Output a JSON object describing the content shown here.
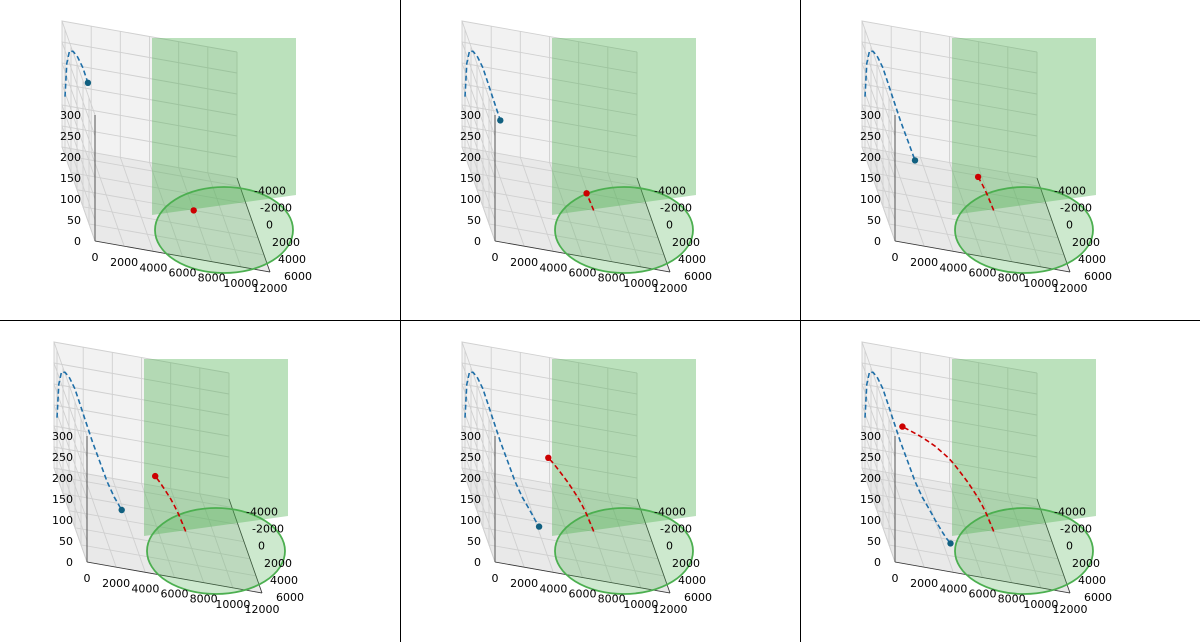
{
  "colors": {
    "launch_track": "#1f6fa8",
    "launch_marker": "#116080",
    "intercept_track": "#cc0000",
    "intercept_marker": "#cc0000",
    "zone_fill": "#4caf50",
    "zone_edge": "#4caf50",
    "pane": "#f2f2f2",
    "grid": "#d0d0d0"
  },
  "chart_data": [
    {
      "type": "line",
      "x_ticks": [
        "0",
        "2000",
        "4000",
        "6000",
        "8000",
        "10000",
        "12000"
      ],
      "y_ticks": [
        "-4000",
        "-2000",
        "0",
        "2000",
        "4000",
        "6000"
      ],
      "z_ticks": [
        "0",
        "50",
        "100",
        "150",
        "200",
        "250",
        "300"
      ],
      "xlim": [
        0,
        12000
      ],
      "ylim": [
        -5000,
        6000
      ],
      "zlim": [
        0,
        300
      ],
      "zone": {
        "center_x": 8000,
        "center_y": 0,
        "radius": 4000
      },
      "series": [
        {
          "x": [
            0,
            20,
            100,
            250,
            450,
            700,
            950
          ],
          "y": [
            -4000,
            -3500,
            -3000,
            -2500,
            -2000,
            -1500,
            -1000
          ],
          "z": [
            140,
            230,
            270,
            280,
            278,
            265,
            240
          ]
        },
        {
          "x": [
            8000
          ],
          "y": [
            0
          ],
          "z": [
            0
          ]
        }
      ],
      "grid": true,
      "legend": "none"
    },
    {
      "type": "line",
      "x_ticks": [
        "0",
        "2000",
        "4000",
        "6000",
        "8000",
        "10000",
        "12000"
      ],
      "y_ticks": [
        "-4000",
        "-2000",
        "0",
        "2000",
        "4000",
        "6000"
      ],
      "z_ticks": [
        "0",
        "50",
        "100",
        "150",
        "200",
        "250",
        "300"
      ],
      "xlim": [
        0,
        12000
      ],
      "ylim": [
        -5000,
        6000
      ],
      "zlim": [
        0,
        300
      ],
      "zone": {
        "center_x": 8000,
        "center_y": 0,
        "radius": 4000
      },
      "series": [
        {
          "x": [
            0,
            20,
            100,
            250,
            450,
            700,
            950,
            1250,
            1600
          ],
          "y": [
            -4000,
            -3500,
            -3000,
            -2500,
            -2000,
            -1500,
            -1000,
            -500,
            0
          ],
          "z": [
            140,
            230,
            270,
            280,
            278,
            265,
            240,
            210,
            175
          ]
        },
        {
          "x": [
            8000,
            7800,
            7600
          ],
          "y": [
            0,
            -200,
            -400
          ],
          "z": [
            0,
            15,
            30
          ]
        }
      ],
      "grid": true,
      "legend": "none"
    },
    {
      "type": "line",
      "x_ticks": [
        "0",
        "2000",
        "4000",
        "6000",
        "8000",
        "10000",
        "12000"
      ],
      "y_ticks": [
        "-4000",
        "-2000",
        "0",
        "2000",
        "4000",
        "6000"
      ],
      "z_ticks": [
        "0",
        "50",
        "100",
        "150",
        "200",
        "250",
        "300"
      ],
      "xlim": [
        0,
        12000
      ],
      "ylim": [
        -5000,
        6000
      ],
      "zlim": [
        0,
        300
      ],
      "zone": {
        "center_x": 8000,
        "center_y": 0,
        "radius": 4000
      },
      "series": [
        {
          "x": [
            0,
            20,
            100,
            250,
            450,
            700,
            950,
            1250,
            1600,
            2000,
            2400
          ],
          "y": [
            -4000,
            -3500,
            -3000,
            -2500,
            -2000,
            -1500,
            -1000,
            -500,
            0,
            500,
            1000
          ],
          "z": [
            140,
            230,
            270,
            280,
            278,
            265,
            240,
            210,
            175,
            140,
            105
          ]
        },
        {
          "x": [
            8000,
            7800,
            7600,
            7350,
            7100
          ],
          "y": [
            0,
            -200,
            -400,
            -600,
            -800
          ],
          "z": [
            0,
            15,
            30,
            45,
            58
          ]
        }
      ],
      "grid": true,
      "legend": "none"
    },
    {
      "type": "line",
      "x_ticks": [
        "0",
        "2000",
        "4000",
        "6000",
        "8000",
        "10000",
        "12000"
      ],
      "y_ticks": [
        "-4000",
        "-2000",
        "0",
        "2000",
        "4000",
        "6000"
      ],
      "z_ticks": [
        "0",
        "50",
        "100",
        "150",
        "200",
        "250",
        "300"
      ],
      "xlim": [
        0,
        12000
      ],
      "ylim": [
        -5000,
        6000
      ],
      "zlim": [
        0,
        300
      ],
      "zone": {
        "center_x": 8000,
        "center_y": 0,
        "radius": 4000
      },
      "series": [
        {
          "x": [
            0,
            20,
            100,
            250,
            450,
            700,
            950,
            1250,
            1600,
            2000,
            2400,
            2800,
            3200
          ],
          "y": [
            -4000,
            -3500,
            -3000,
            -2500,
            -2000,
            -1500,
            -1000,
            -500,
            0,
            500,
            1000,
            1500,
            2000
          ],
          "z": [
            140,
            230,
            270,
            280,
            278,
            265,
            240,
            210,
            175,
            140,
            105,
            80,
            62
          ]
        },
        {
          "x": [
            8000,
            7800,
            7600,
            7350,
            7100,
            6800,
            6500,
            6200
          ],
          "y": [
            0,
            -200,
            -400,
            -600,
            -800,
            -1000,
            -1200,
            -1400
          ],
          "z": [
            0,
            15,
            30,
            45,
            58,
            70,
            82,
            92
          ]
        }
      ],
      "grid": true,
      "legend": "none"
    },
    {
      "type": "line",
      "x_ticks": [
        "0",
        "2000",
        "4000",
        "6000",
        "8000",
        "10000",
        "12000"
      ],
      "y_ticks": [
        "-4000",
        "-2000",
        "0",
        "2000",
        "4000",
        "6000"
      ],
      "z_ticks": [
        "0",
        "50",
        "100",
        "150",
        "200",
        "250",
        "300"
      ],
      "xlim": [
        0,
        12000
      ],
      "ylim": [
        -5000,
        6000
      ],
      "zlim": [
        0,
        300
      ],
      "zone": {
        "center_x": 8000,
        "center_y": 0,
        "radius": 4000
      },
      "series": [
        {
          "x": [
            0,
            20,
            100,
            250,
            450,
            700,
            950,
            1250,
            1600,
            2000,
            2400,
            2800,
            3200,
            3500,
            3700
          ],
          "y": [
            -4000,
            -3500,
            -3000,
            -2500,
            -2000,
            -1500,
            -1000,
            -500,
            0,
            500,
            1000,
            1500,
            2000,
            2400,
            2700
          ],
          "z": [
            140,
            230,
            270,
            280,
            278,
            265,
            240,
            210,
            175,
            140,
            105,
            80,
            62,
            48,
            40
          ]
        },
        {
          "x": [
            8000,
            7800,
            7600,
            7350,
            7100,
            6800,
            6500,
            6200,
            5900,
            5600,
            5300
          ],
          "y": [
            0,
            -200,
            -400,
            -600,
            -800,
            -1000,
            -1200,
            -1400,
            -1600,
            -1800,
            -2000
          ],
          "z": [
            0,
            15,
            30,
            45,
            58,
            70,
            82,
            92,
            102,
            111,
            118
          ]
        }
      ],
      "grid": true,
      "legend": "none"
    },
    {
      "type": "line",
      "x_ticks": [
        "0",
        "2000",
        "4000",
        "6000",
        "8000",
        "10000",
        "12000"
      ],
      "y_ticks": [
        "-4000",
        "-2000",
        "0",
        "2000",
        "4000",
        "6000"
      ],
      "z_ticks": [
        "0",
        "50",
        "100",
        "150",
        "200",
        "250",
        "300"
      ],
      "xlim": [
        0,
        12000
      ],
      "ylim": [
        -5000,
        6000
      ],
      "zlim": [
        0,
        300
      ],
      "zone": {
        "center_x": 8000,
        "center_y": 0,
        "radius": 4000
      },
      "series": [
        {
          "x": [
            0,
            20,
            100,
            250,
            450,
            700,
            950,
            1250,
            1600,
            2000,
            2400,
            2800,
            3200,
            3500,
            3700,
            3900,
            4100,
            4300
          ],
          "y": [
            -4000,
            -3500,
            -3000,
            -2500,
            -2000,
            -1500,
            -1000,
            -500,
            0,
            500,
            1000,
            1500,
            2000,
            2400,
            2700,
            3000,
            3300,
            3600
          ],
          "z": [
            140,
            230,
            270,
            280,
            278,
            265,
            240,
            210,
            175,
            140,
            105,
            80,
            62,
            48,
            40,
            32,
            26,
            22
          ]
        },
        {
          "x": [
            8000,
            7800,
            7600,
            7350,
            7100,
            6800,
            6500,
            6200,
            5900,
            5600,
            5300,
            4900,
            4500,
            4000,
            3500,
            2900,
            2400
          ],
          "y": [
            0,
            -200,
            -400,
            -600,
            -800,
            -1000,
            -1200,
            -1400,
            -1600,
            -1800,
            -2000,
            -2200,
            -2400,
            -2600,
            -2800,
            -3000,
            -3200
          ],
          "z": [
            0,
            15,
            30,
            45,
            58,
            70,
            82,
            92,
            102,
            111,
            118,
            125,
            132,
            138,
            143,
            147,
            150
          ]
        }
      ],
      "grid": true,
      "legend": "none"
    }
  ]
}
